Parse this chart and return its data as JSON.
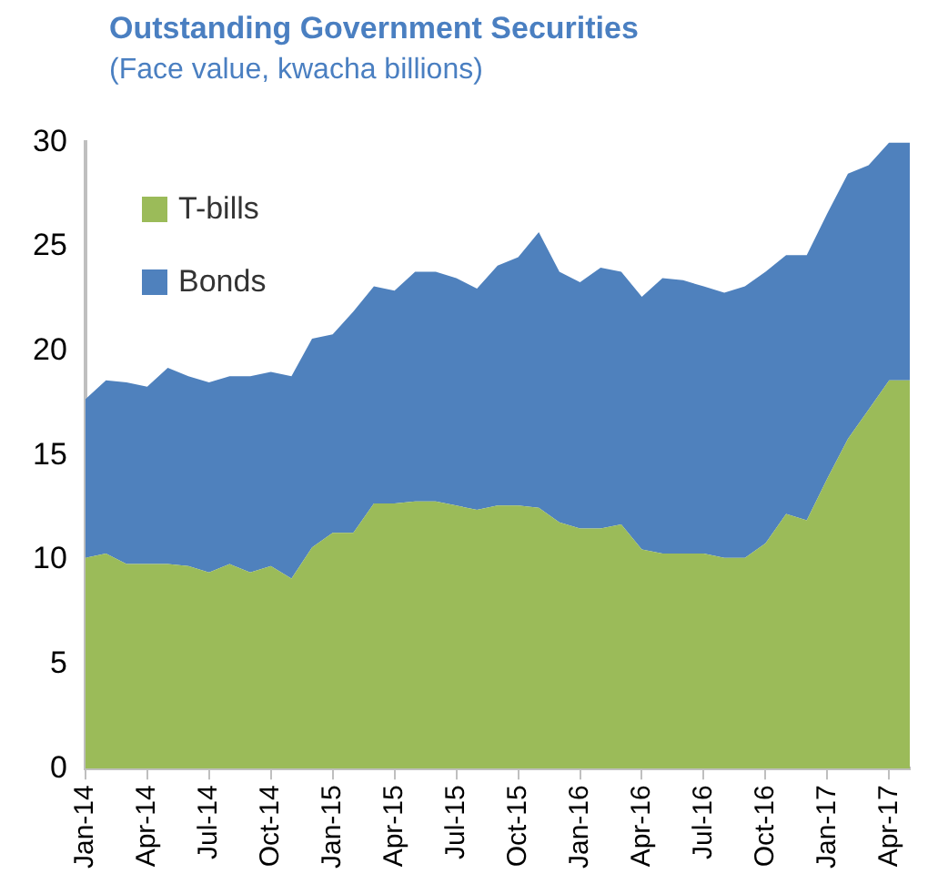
{
  "chart_data": {
    "type": "area",
    "title": "Outstanding Government Securities",
    "subtitle": "(Face value, kwacha billions)",
    "stacked": true,
    "legend": "top left",
    "grid": false,
    "categories": [
      "Jan-14",
      null,
      null,
      "Apr-14",
      null,
      null,
      "Jul-14",
      null,
      null,
      "Oct-14",
      null,
      null,
      "Jan-15",
      null,
      null,
      "Apr-15",
      null,
      null,
      "Jul-15",
      null,
      null,
      "Oct-15",
      null,
      null,
      "Jan-16",
      null,
      null,
      "Apr-16",
      null,
      null,
      "Jul-16",
      null,
      null,
      "Oct-16",
      null,
      null,
      "Jan-17",
      null,
      null,
      "Apr-17",
      null
    ],
    "ylim": [
      0,
      30
    ],
    "yticks": [
      0,
      5,
      10,
      15,
      20,
      25,
      30
    ],
    "series": [
      {
        "name": "T-bills",
        "color": "#9bbb59",
        "values": [
          10.1,
          10.3,
          9.8,
          9.8,
          9.8,
          9.7,
          9.4,
          9.8,
          9.4,
          9.7,
          9.1,
          10.6,
          11.3,
          11.3,
          12.7,
          12.7,
          12.8,
          12.8,
          12.6,
          12.4,
          12.6,
          12.6,
          12.5,
          11.8,
          11.5,
          11.5,
          11.7,
          10.5,
          10.3,
          10.3,
          10.3,
          10.1,
          10.1,
          10.8,
          12.2,
          11.9,
          13.9,
          15.8,
          17.2,
          18.6,
          18.6
        ]
      },
      {
        "name": "Bonds",
        "color": "#4f81bd",
        "values": [
          7.6,
          8.3,
          8.7,
          8.5,
          9.4,
          9.1,
          9.1,
          9.0,
          9.4,
          9.3,
          9.7,
          10.0,
          9.5,
          10.6,
          10.4,
          10.2,
          11.0,
          11.0,
          10.9,
          10.6,
          11.5,
          11.9,
          13.2,
          12.0,
          11.8,
          12.5,
          12.1,
          12.1,
          13.2,
          13.1,
          12.8,
          12.7,
          13.0,
          13.0,
          12.4,
          12.7,
          12.7,
          12.7,
          11.7,
          11.4,
          11.4
        ]
      }
    ]
  }
}
